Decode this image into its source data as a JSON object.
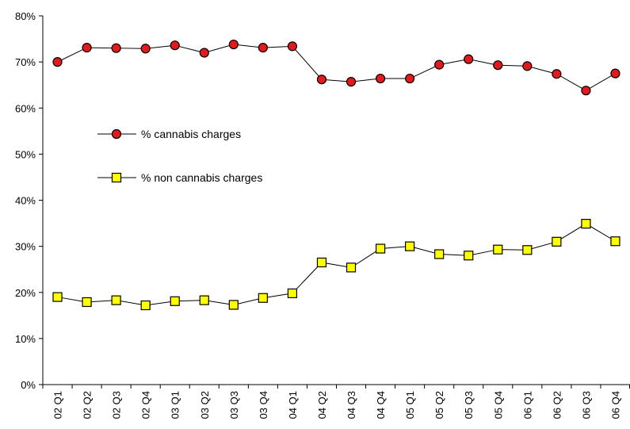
{
  "chart_data": {
    "type": "line",
    "title": "",
    "xlabel": "",
    "ylabel": "",
    "categories": [
      "02 Q1",
      "02 Q2",
      "02 Q3",
      "02 Q4",
      "03 Q1",
      "03 Q2",
      "03 Q3",
      "03 Q4",
      "04 Q1",
      "04 Q2",
      "04 Q3",
      "04 Q4",
      "05 Q1",
      "05 Q2",
      "05 Q3",
      "05 Q4",
      "06 Q1",
      "06 Q2",
      "06 Q3",
      "06 Q4"
    ],
    "ylim": [
      0,
      80
    ],
    "yticks": [
      "0%",
      "10%",
      "20%",
      "30%",
      "40%",
      "50%",
      "60%",
      "70%",
      "80%"
    ],
    "grid": false,
    "legend_position": "left-middle",
    "series": [
      {
        "name": "% cannabis charges",
        "marker": "circle",
        "color": "#e31a1c",
        "values": [
          70.0,
          73.1,
          73.0,
          72.9,
          73.6,
          72.0,
          73.8,
          73.1,
          73.4,
          66.2,
          65.7,
          66.4,
          66.4,
          69.4,
          70.6,
          69.3,
          69.1,
          67.4,
          63.8,
          67.5
        ]
      },
      {
        "name": "% non cannabis charges",
        "marker": "square",
        "color": "#ffff00",
        "values": [
          19.0,
          17.9,
          18.3,
          17.2,
          18.1,
          18.3,
          17.3,
          18.8,
          19.8,
          26.5,
          25.4,
          29.5,
          30.0,
          28.3,
          28.0,
          29.3,
          29.2,
          31.0,
          34.9,
          31.1
        ]
      }
    ]
  }
}
